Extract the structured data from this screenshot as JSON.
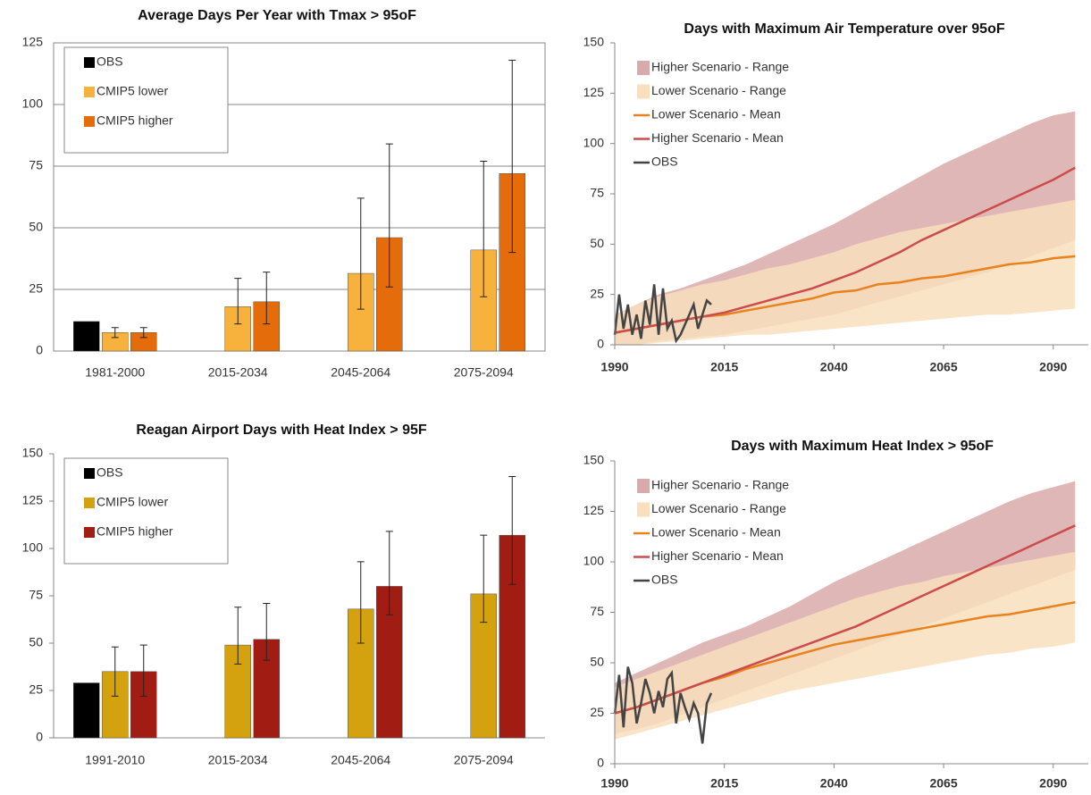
{
  "chart_data": [
    {
      "type": "bar",
      "title": "Average Days Per Year with Tmax > 95oF",
      "categories": [
        "1981-2000",
        "2015-2034",
        "2045-2064",
        "2075-2094"
      ],
      "series": [
        {
          "name": "OBS",
          "color": "#000000",
          "values": [
            12,
            null,
            null,
            null
          ],
          "err_low": [
            null,
            null,
            null,
            null
          ],
          "err_high": [
            null,
            null,
            null,
            null
          ]
        },
        {
          "name": "CMIP5 lower",
          "color": "#f7b13d",
          "values": [
            7.5,
            18,
            31.5,
            41
          ],
          "err_low": [
            5.5,
            11,
            17,
            22
          ],
          "err_high": [
            9.5,
            29.5,
            62,
            77
          ]
        },
        {
          "name": "CMIP5 higher",
          "color": "#e46c0a",
          "values": [
            7.5,
            20,
            46,
            72
          ],
          "err_low": [
            5.5,
            11,
            26,
            40
          ],
          "err_high": [
            9.5,
            32,
            84,
            118
          ]
        }
      ],
      "ylim": [
        0,
        125
      ],
      "yticks": [
        0,
        25,
        50,
        75,
        100,
        125
      ],
      "grid": true,
      "legend": "upper left"
    },
    {
      "type": "bar",
      "title": "Reagan Airport Days with Heat Index > 95F",
      "categories": [
        "1991-2010",
        "2015-2034",
        "2045-2064",
        "2075-2094"
      ],
      "series": [
        {
          "name": "OBS",
          "color": "#000000",
          "values": [
            29,
            null,
            null,
            null
          ],
          "err_low": [
            null,
            null,
            null,
            null
          ],
          "err_high": [
            null,
            null,
            null,
            null
          ]
        },
        {
          "name": "CMIP5 lower",
          "color": "#d4a20e",
          "values": [
            35,
            49,
            68,
            76
          ],
          "err_low": [
            22,
            39,
            50,
            61
          ],
          "err_high": [
            48,
            69,
            93,
            107
          ]
        },
        {
          "name": "CMIP5 higher",
          "color": "#a11d14",
          "values": [
            35,
            52,
            80,
            107
          ],
          "err_low": [
            22,
            41,
            65,
            81
          ],
          "err_high": [
            49,
            71,
            109,
            138
          ]
        }
      ],
      "ylim": [
        0,
        150
      ],
      "yticks": [
        0,
        25,
        50,
        75,
        100,
        125,
        150
      ],
      "grid": false,
      "legend": "upper left"
    },
    {
      "type": "line",
      "title": "Days with Maximum Air Temperature over 95oF",
      "x": [
        1990,
        1995,
        2000,
        2005,
        2010,
        2015,
        2020,
        2025,
        2030,
        2035,
        2040,
        2045,
        2050,
        2055,
        2060,
        2065,
        2070,
        2075,
        2080,
        2085,
        2090,
        2095
      ],
      "series": [
        {
          "name": "Higher Scenario - Range",
          "color": "#d9aaaa",
          "low": [
            0,
            0,
            2,
            3,
            4,
            5,
            7,
            9,
            11,
            13,
            15,
            18,
            21,
            24,
            27,
            30,
            33,
            36,
            40,
            44,
            48,
            52
          ],
          "high": [
            15,
            20,
            25,
            28,
            32,
            36,
            40,
            45,
            50,
            55,
            60,
            66,
            72,
            78,
            84,
            90,
            95,
            100,
            105,
            110,
            114,
            116
          ]
        },
        {
          "name": "Lower Scenario - Range",
          "color": "#f9dfbd",
          "low": [
            0,
            0,
            1,
            2,
            3,
            4,
            5,
            5,
            6,
            7,
            8,
            9,
            10,
            11,
            12,
            13,
            14,
            15,
            15,
            16,
            17,
            18
          ],
          "high": [
            15,
            20,
            24,
            27,
            30,
            32,
            35,
            38,
            40,
            43,
            46,
            50,
            53,
            56,
            58,
            60,
            62,
            64,
            66,
            68,
            70,
            72
          ]
        },
        {
          "name": "Lower Scenario - Mean",
          "color": "#e8821e",
          "values": [
            6,
            8,
            10,
            12,
            14,
            15,
            17,
            19,
            21,
            23,
            26,
            27,
            30,
            31,
            33,
            34,
            36,
            38,
            40,
            41,
            43,
            44
          ]
        },
        {
          "name": "Higher Scenario - Mean",
          "color": "#cc4b4b",
          "values": [
            6,
            8,
            10,
            12,
            14,
            16,
            19,
            22,
            25,
            28,
            32,
            36,
            41,
            46,
            52,
            57,
            62,
            67,
            72,
            77,
            82,
            88
          ]
        },
        {
          "name": "OBS",
          "color": "#444444",
          "x": [
            1990,
            1991,
            1992,
            1993,
            1994,
            1995,
            1996,
            1997,
            1998,
            1999,
            2000,
            2001,
            2002,
            2003,
            2004,
            2005,
            2006,
            2007,
            2008,
            2009,
            2010,
            2011,
            2012
          ],
          "values": [
            5,
            25,
            8,
            20,
            5,
            15,
            3,
            22,
            10,
            30,
            5,
            28,
            8,
            12,
            2,
            5,
            10,
            15,
            20,
            8,
            15,
            22,
            20
          ]
        }
      ],
      "xlim": [
        1990,
        2098
      ],
      "xticks": [
        1990,
        2015,
        2040,
        2065,
        2090
      ],
      "ylim": [
        0,
        150
      ],
      "yticks": [
        0,
        25,
        50,
        75,
        100,
        125,
        150
      ],
      "grid": false,
      "legend": "upper left"
    },
    {
      "type": "line",
      "title": "Days with Maximum Heat Index > 95oF",
      "x": [
        1990,
        1995,
        2000,
        2005,
        2010,
        2015,
        2020,
        2025,
        2030,
        2035,
        2040,
        2045,
        2050,
        2055,
        2060,
        2065,
        2070,
        2075,
        2080,
        2085,
        2090,
        2095
      ],
      "series": [
        {
          "name": "Higher Scenario - Range",
          "color": "#d9aaaa",
          "low": [
            15,
            17,
            20,
            24,
            28,
            32,
            36,
            40,
            44,
            48,
            52,
            56,
            60,
            64,
            68,
            72,
            76,
            80,
            84,
            88,
            92,
            96
          ],
          "high": [
            40,
            45,
            50,
            55,
            60,
            64,
            68,
            73,
            78,
            84,
            90,
            95,
            100,
            105,
            110,
            115,
            120,
            125,
            130,
            134,
            137,
            140
          ]
        },
        {
          "name": "Lower Scenario - Range",
          "color": "#f9dfbd",
          "low": [
            12,
            15,
            18,
            21,
            24,
            27,
            30,
            33,
            36,
            38,
            40,
            42,
            44,
            46,
            48,
            50,
            52,
            54,
            55,
            57,
            58,
            60
          ],
          "high": [
            38,
            42,
            46,
            50,
            54,
            58,
            62,
            66,
            70,
            74,
            78,
            82,
            85,
            88,
            90,
            93,
            95,
            97,
            99,
            101,
            103,
            105
          ]
        },
        {
          "name": "Lower Scenario - Mean",
          "color": "#e8821e",
          "values": [
            25,
            28,
            32,
            36,
            40,
            43,
            47,
            50,
            53,
            56,
            59,
            61,
            63,
            65,
            67,
            69,
            71,
            73,
            74,
            76,
            78,
            80
          ]
        },
        {
          "name": "Higher Scenario - Mean",
          "color": "#cc4b4b",
          "values": [
            25,
            28,
            32,
            36,
            40,
            44,
            48,
            52,
            56,
            60,
            64,
            68,
            73,
            78,
            83,
            88,
            93,
            98,
            103,
            108,
            113,
            118
          ]
        },
        {
          "name": "OBS",
          "color": "#444444",
          "x": [
            1990,
            1991,
            1992,
            1993,
            1994,
            1995,
            1996,
            1997,
            1998,
            1999,
            2000,
            2001,
            2002,
            2003,
            2004,
            2005,
            2006,
            2007,
            2008,
            2009,
            2010,
            2011,
            2012
          ],
          "values": [
            25,
            44,
            18,
            48,
            40,
            20,
            30,
            42,
            35,
            25,
            36,
            28,
            42,
            45,
            20,
            35,
            28,
            22,
            30,
            25,
            10,
            30,
            35
          ]
        }
      ],
      "xlim": [
        1990,
        2098
      ],
      "xticks": [
        1990,
        2015,
        2040,
        2065,
        2090
      ],
      "ylim": [
        0,
        150
      ],
      "yticks": [
        0,
        25,
        50,
        75,
        100,
        125,
        150
      ],
      "grid": false,
      "legend": "upper left"
    }
  ]
}
